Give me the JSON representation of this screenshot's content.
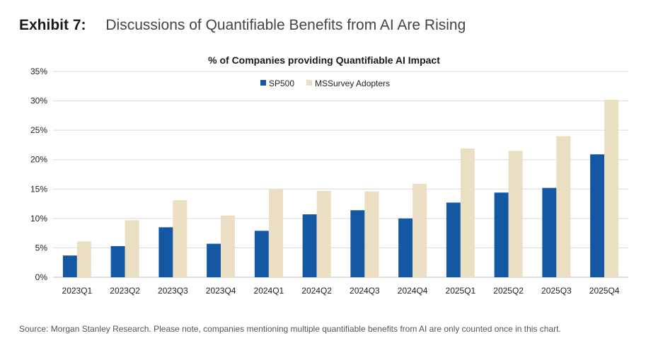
{
  "exhibit": {
    "label": "Exhibit 7:",
    "title": "Discussions of Quantifiable Benefits from AI Are Rising"
  },
  "source": "Source: Morgan Stanley Research. Please note, companies mentioning multiple quantifiable benefits from AI are only counted once in this chart.",
  "colors": {
    "sp500": "#1458a3",
    "survey": "#eadfc2",
    "grid": "#d9d9d9",
    "axis": "#bfbfbf"
  },
  "chart_data": {
    "type": "bar",
    "title": "% of Companies providing Quantifiable AI Impact",
    "xlabel": "",
    "ylabel": "",
    "ylim": [
      0,
      35
    ],
    "yticks": [
      0,
      5,
      10,
      15,
      20,
      25,
      30,
      35
    ],
    "ytick_labels": [
      "0%",
      "5%",
      "10%",
      "15%",
      "20%",
      "25%",
      "30%",
      "35%"
    ],
    "legend_position": "top-center",
    "categories": [
      "2023Q1",
      "2023Q2",
      "2023Q3",
      "2023Q4",
      "2024Q1",
      "2024Q2",
      "2024Q3",
      "2024Q4",
      "2025Q1",
      "2025Q2",
      "2025Q3",
      "2025Q4"
    ],
    "series": [
      {
        "name": "SP500",
        "values": [
          3.7,
          5.3,
          8.5,
          5.7,
          7.9,
          10.7,
          11.4,
          10.0,
          12.7,
          14.4,
          15.2,
          20.9
        ]
      },
      {
        "name": "MSSurvey Adopters",
        "values": [
          6.1,
          9.7,
          13.1,
          10.5,
          14.9,
          14.7,
          14.6,
          15.9,
          21.9,
          21.5,
          24.0,
          30.2
        ]
      }
    ]
  }
}
